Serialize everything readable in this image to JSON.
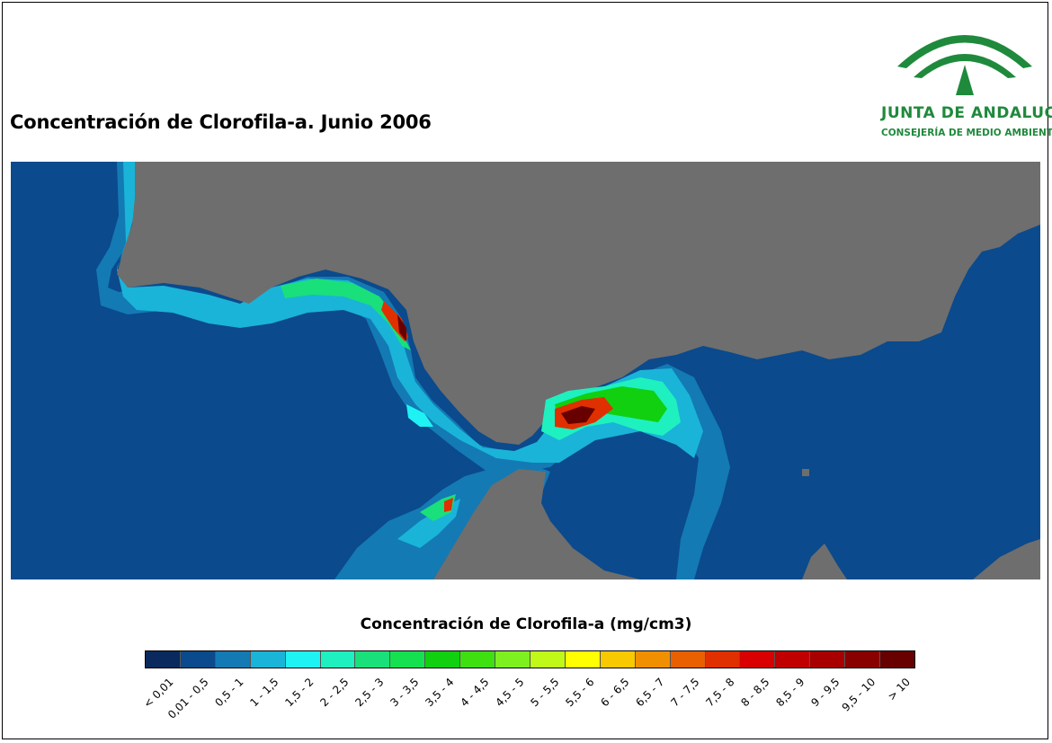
{
  "title": "Concentración de Clorofila-a. Junio 2006",
  "logo": {
    "name": "JUNTA DE ANDALUCIA",
    "subtitle": "CONSEJERÍA DE MEDIO AMBIENTE",
    "color": "#1f8a3c"
  },
  "map": {
    "land_color": "#6e6e6e",
    "sea_color": "#0b4a8c"
  },
  "legend": {
    "title": "Concentración de Clorofila-a (mg/cm3)",
    "classes": [
      {
        "label": "< 0,01",
        "color": "#0a2a5e"
      },
      {
        "label": "0,01 - 0,5",
        "color": "#0b4a8c"
      },
      {
        "label": "0,5 - 1",
        "color": "#137ab4"
      },
      {
        "label": "1 - 1,5",
        "color": "#1ab4d8"
      },
      {
        "label": "1,5 - 2",
        "color": "#1ef2f2"
      },
      {
        "label": "2 - 2,5",
        "color": "#1ff0c0"
      },
      {
        "label": "2,5 - 3",
        "color": "#19e07a"
      },
      {
        "label": "3 - 3,5",
        "color": "#14e050"
      },
      {
        "label": "3,5 - 4",
        "color": "#10d010"
      },
      {
        "label": "4 - 4,5",
        "color": "#3ee010"
      },
      {
        "label": "4,5 - 5",
        "color": "#7ef020"
      },
      {
        "label": "5 - 5,5",
        "color": "#c0f818"
      },
      {
        "label": "5,5 - 6",
        "color": "#ffff00"
      },
      {
        "label": "6 - 6,5",
        "color": "#f8c800"
      },
      {
        "label": "6,5 - 7",
        "color": "#f09000"
      },
      {
        "label": "7 - 7,5",
        "color": "#e86000"
      },
      {
        "label": "7,5 - 8",
        "color": "#e03000"
      },
      {
        "label": "8 - 8,5",
        "color": "#d80000"
      },
      {
        "label": "8,5 - 9",
        "color": "#c00000"
      },
      {
        "label": "9 - 9,5",
        "color": "#a80000"
      },
      {
        "label": "9,5 - 10",
        "color": "#880000"
      },
      {
        "label": "> 10",
        "color": "#680000"
      }
    ]
  }
}
